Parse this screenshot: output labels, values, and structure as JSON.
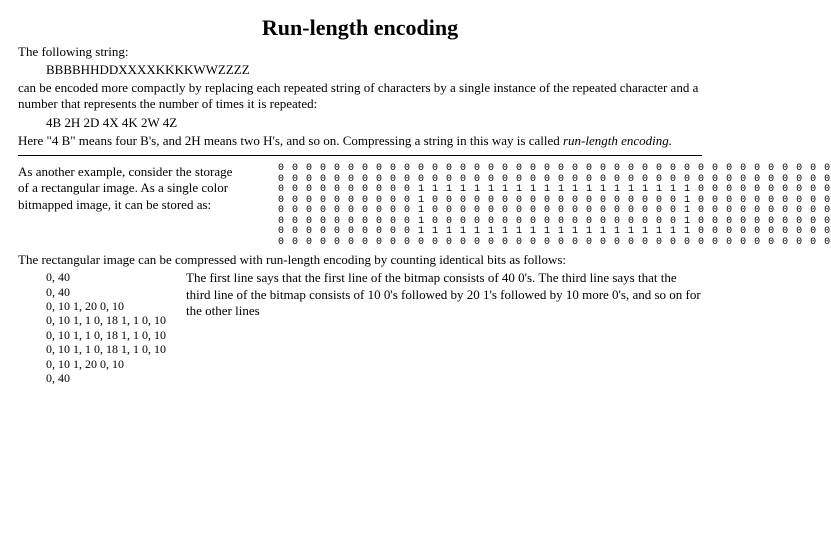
{
  "title": "Run-length encoding",
  "intro1": "The following string:",
  "src_string": "BBBBHHDDXXXXKKKKWWZZZZ",
  "intro2": "can be encoded more compactly by replacing each repeated string of characters by a single instance of the repeated character and a number that represents the number of times it is repeated:",
  "encoded_string": "4B 2H 2D 4X 4K 2W 4Z",
  "intro3_a": "Here \"4 B\" means four B's, and 2H means two H's, and so on. Compressing a string in this way is called ",
  "intro3_b": "run-length encoding.",
  "example2_lead": "As another example, consider the storage of a rectangular image. As a single color bitmapped image, it can be stored as:",
  "bitmap": "0 0 0 0 0 0 0 0 0 0 0 0 0 0 0 0 0 0 0 0 0 0 0 0 0 0 0 0 0 0 0 0 0 0 0 0 0 0 0 0\n0 0 0 0 0 0 0 0 0 0 0 0 0 0 0 0 0 0 0 0 0 0 0 0 0 0 0 0 0 0 0 0 0 0 0 0 0 0 0 0\n0 0 0 0 0 0 0 0 0 0 1 1 1 1 1 1 1 1 1 1 1 1 1 1 1 1 1 1 1 1 0 0 0 0 0 0 0 0 0 0\n0 0 0 0 0 0 0 0 0 0 1 0 0 0 0 0 0 0 0 0 0 0 0 0 0 0 0 0 0 1 0 0 0 0 0 0 0 0 0 0\n0 0 0 0 0 0 0 0 0 0 1 0 0 0 0 0 0 0 0 0 0 0 0 0 0 0 0 0 0 1 0 0 0 0 0 0 0 0 0 0\n0 0 0 0 0 0 0 0 0 0 1 0 0 0 0 0 0 0 0 0 0 0 0 0 0 0 0 0 0 1 0 0 0 0 0 0 0 0 0 0\n0 0 0 0 0 0 0 0 0 0 1 1 1 1 1 1 1 1 1 1 1 1 1 1 1 1 1 1 1 1 0 0 0 0 0 0 0 0 0 0\n0 0 0 0 0 0 0 0 0 0 0 0 0 0 0 0 0 0 0 0 0 0 0 0 0 0 0 0 0 0 0 0 0 0 0 0 0 0 0 0",
  "compress_lead": "The rectangular image can be compressed with run-length encoding by counting identical bits as follows:",
  "rle_lines": [
    "0, 40",
    "0, 40",
    "0, 10 1, 20 0, 10",
    "0, 10 1, 1 0, 18 1, 1 0, 10",
    "0, 10 1, 1 0, 18 1, 1 0, 10",
    "0, 10 1, 1 0, 18 1, 1 0, 10",
    "0, 10 1, 20 0, 10",
    "0, 40"
  ],
  "description": "The first line says that the first line of the bitmap consists of 40 0's. The third line says that the third line of the bitmap consists of 10 0's followed by 20 1's followed by 10 more 0's, and so on for the other lines"
}
